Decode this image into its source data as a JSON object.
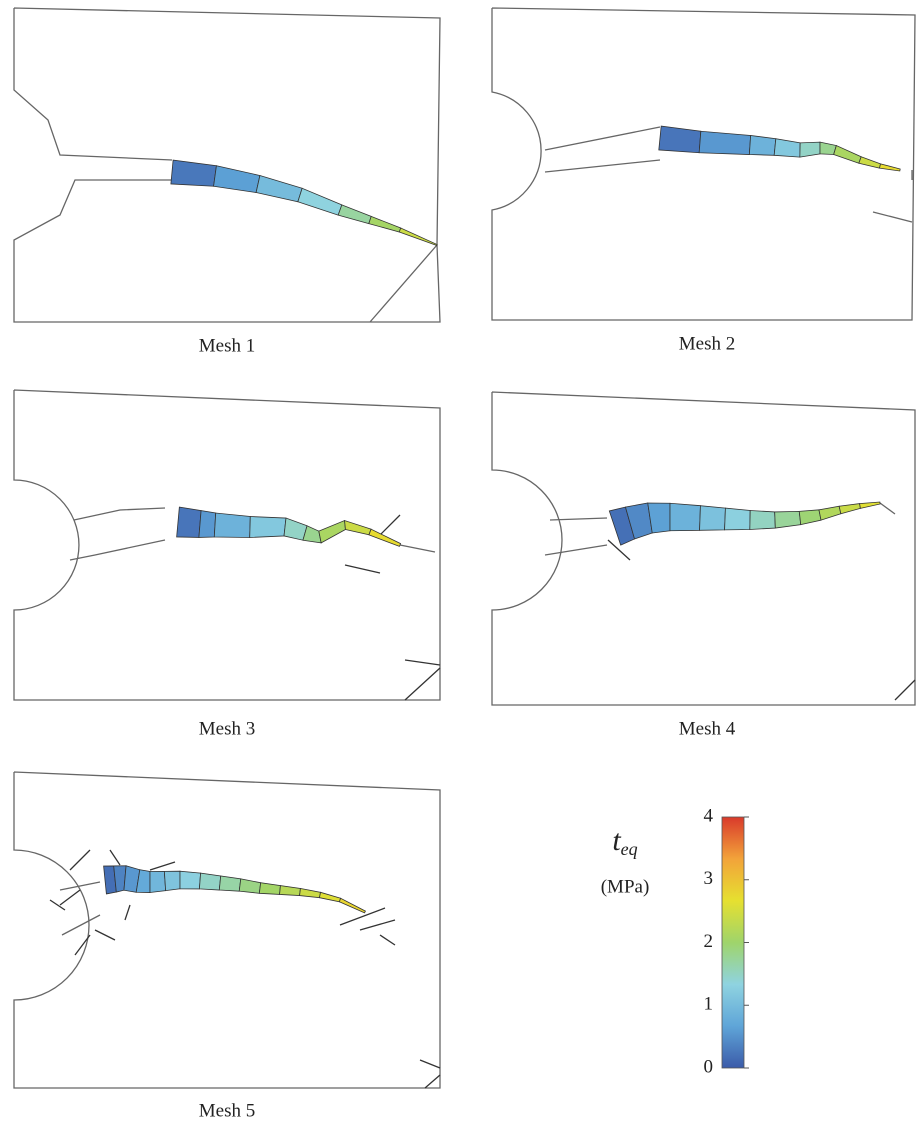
{
  "panels": [
    {
      "label": "Mesh 1"
    },
    {
      "label": "Mesh 2"
    },
    {
      "label": "Mesh 3"
    },
    {
      "label": "Mesh 4"
    },
    {
      "label": "Mesh 5"
    }
  ],
  "colorbar": {
    "symbol": "t",
    "subscript": "eq",
    "unit": "(MPa)",
    "lim": [
      0,
      4
    ],
    "ticks": [
      0,
      1,
      2,
      3,
      4
    ],
    "colormap": [
      "#3b5ba9",
      "#5fa5d8",
      "#8fd3e0",
      "#9fd46b",
      "#e6e030",
      "#f2a33a",
      "#d93a2b"
    ]
  }
}
